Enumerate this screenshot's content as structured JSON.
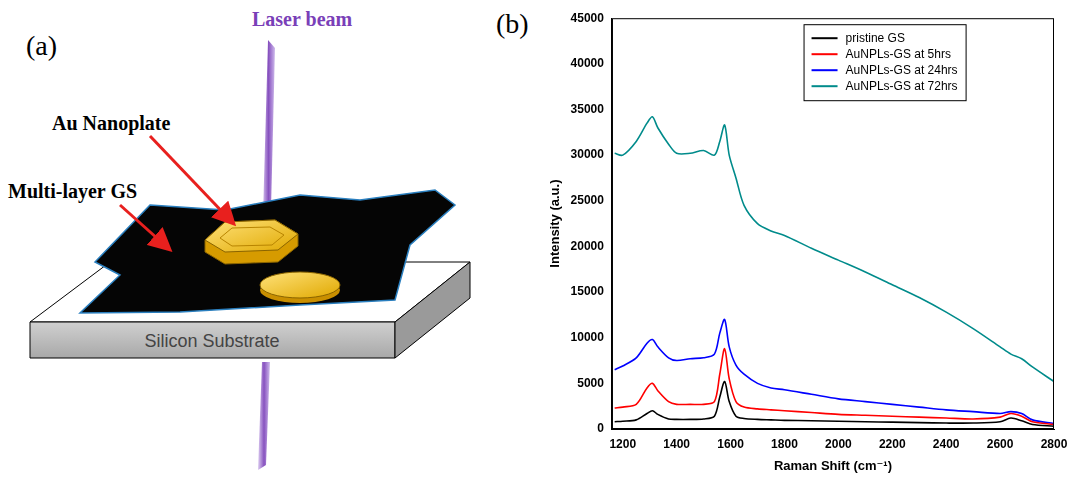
{
  "diagram": {
    "panel_label": "(a)",
    "labels": {
      "laser": "Laser beam",
      "nanoplate": "Au Nanoplate",
      "graphene": "Multi-layer GS",
      "substrate": "Silicon Substrate"
    }
  },
  "chart_data": {
    "type": "line",
    "panel_label": "(b)",
    "x_label": "Raman Shift (cm⁻¹)",
    "y_label": "Intensity (a.u.)",
    "x": [
      1170,
      1200,
      1250,
      1290,
      1310,
      1330,
      1370,
      1400,
      1450,
      1500,
      1540,
      1560,
      1578,
      1595,
      1620,
      1650,
      1700,
      1750,
      1800,
      1900,
      2000,
      2100,
      2200,
      2300,
      2400,
      2500,
      2600,
      2640,
      2680,
      2720,
      2800
    ],
    "series": [
      {
        "name": "pristine GS",
        "color": "#000000",
        "values": [
          800,
          850,
          1000,
          1700,
          2000,
          1600,
          1100,
          1050,
          1050,
          1100,
          1400,
          3500,
          5200,
          3000,
          1400,
          1150,
          1050,
          1000,
          950,
          900,
          850,
          800,
          750,
          700,
          650,
          650,
          800,
          1200,
          900,
          500,
          300
        ]
      },
      {
        "name": "AuNPLs-GS at 5hrs",
        "color": "#ff0000",
        "values": [
          2300,
          2400,
          2700,
          4500,
          5000,
          4200,
          3000,
          2700,
          2700,
          2700,
          3000,
          6000,
          8800,
          5500,
          3000,
          2400,
          2200,
          2100,
          2000,
          1800,
          1600,
          1500,
          1400,
          1300,
          1200,
          1100,
          1300,
          1700,
          1400,
          800,
          500
        ]
      },
      {
        "name": "AuNPLs-GS at 24hrs",
        "color": "#0000ff",
        "values": [
          6500,
          6900,
          7800,
          9400,
          9800,
          9000,
          7800,
          7500,
          7700,
          7800,
          8200,
          10500,
          12000,
          9000,
          7000,
          6000,
          5000,
          4500,
          4300,
          3800,
          3300,
          3000,
          2700,
          2400,
          2100,
          1900,
          1700,
          1900,
          1700,
          1000,
          600
        ]
      },
      {
        "name": "AuNPLs-GS at 72hrs",
        "color": "#008b8b",
        "values": [
          30200,
          30000,
          31500,
          33500,
          34200,
          33000,
          31200,
          30200,
          30200,
          30500,
          30000,
          31500,
          33300,
          30000,
          27500,
          24500,
          22500,
          21700,
          21200,
          19800,
          18500,
          17200,
          15800,
          14400,
          12800,
          11000,
          9000,
          8200,
          7700,
          6800,
          5200
        ]
      }
    ],
    "xlim": [
      1160,
      2800
    ],
    "xticks": [
      1200,
      1400,
      1600,
      1800,
      2000,
      2200,
      2400,
      2600,
      2800
    ],
    "ylim": [
      0,
      45000
    ],
    "yticks": [
      0,
      5000,
      10000,
      15000,
      20000,
      25000,
      30000,
      35000,
      40000,
      45000
    ],
    "grid": false,
    "legend": "upper right"
  }
}
